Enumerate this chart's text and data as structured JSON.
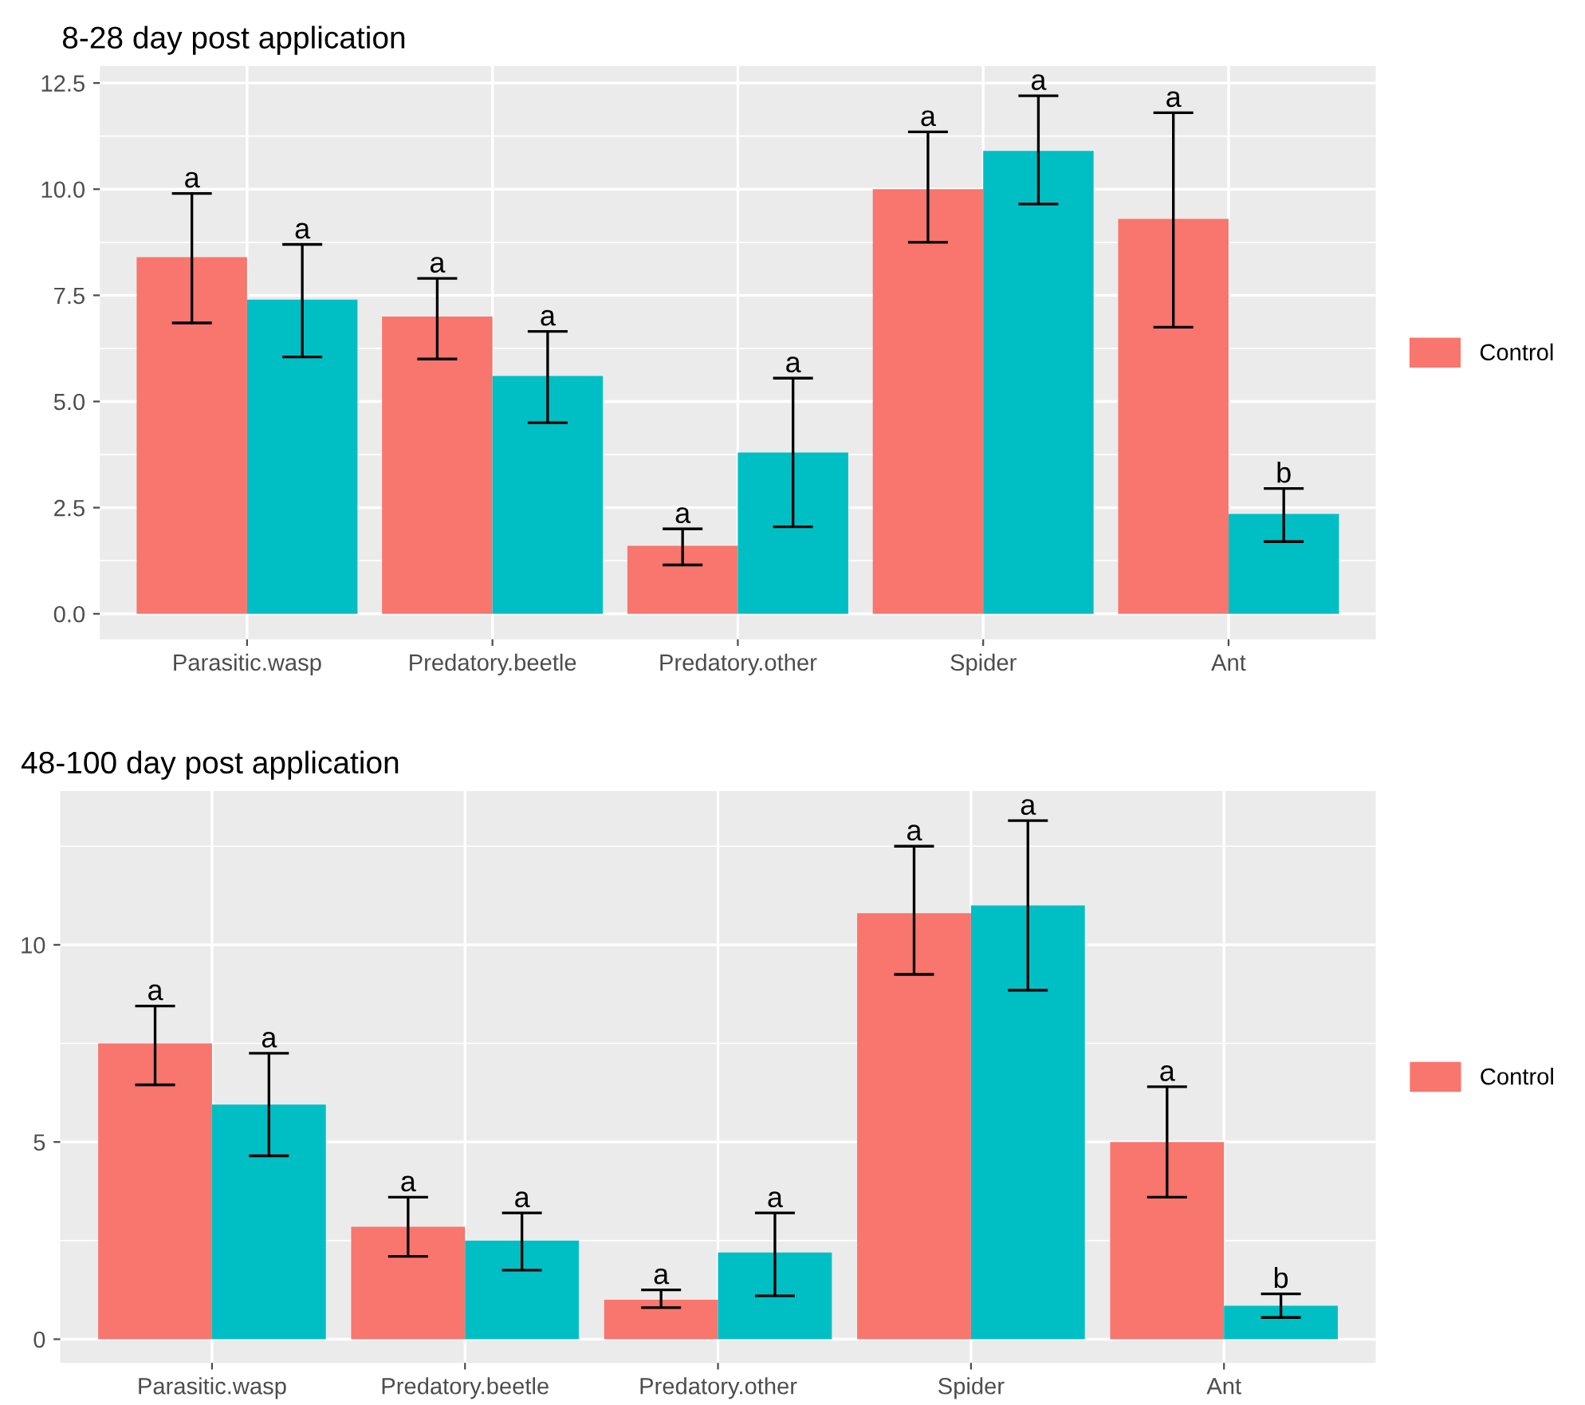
{
  "chart_data": [
    {
      "type": "bar",
      "title": "8-28 day post application",
      "categories": [
        "Parasitic.wasp",
        "Predatory.beetle",
        "Predatory.other",
        "Spider",
        "Ant"
      ],
      "series": [
        {
          "name": "Control",
          "color": "#f8766d",
          "values": [
            8.4,
            7.0,
            1.6,
            10.0,
            9.3
          ],
          "errors": [
            [
              6.85,
              9.9
            ],
            [
              6.0,
              7.9
            ],
            [
              1.15,
              2.0
            ],
            [
              8.75,
              11.35
            ],
            [
              6.75,
              11.8
            ]
          ]
        },
        {
          "color": "#00bfc4",
          "values": [
            7.4,
            5.6,
            3.8,
            10.9,
            2.35
          ],
          "errors": [
            [
              6.05,
              8.7
            ],
            [
              4.5,
              6.65
            ],
            [
              2.05,
              5.55
            ],
            [
              9.65,
              12.2
            ],
            [
              1.7,
              2.95
            ]
          ]
        }
      ],
      "annotations": [
        "a",
        "a",
        "a",
        "a",
        "a",
        "a",
        "a",
        "a",
        "a",
        "b"
      ],
      "ylim": [
        -0.6,
        12.9
      ],
      "yticks": [
        {
          "value": 0,
          "label": "0.0"
        },
        {
          "value": 2.5,
          "label": "2.5"
        },
        {
          "value": 5,
          "label": "5.0"
        },
        {
          "value": 7.5,
          "label": "7.5"
        },
        {
          "value": 10,
          "label": "10.0"
        },
        {
          "value": 12.5,
          "label": "12.5"
        }
      ],
      "grid": true,
      "legend": "right"
    },
    {
      "type": "bar",
      "title": "48-100 day post application",
      "categories": [
        "Parasitic.wasp",
        "Predatory.beetle",
        "Predatory.other",
        "Spider",
        "Ant"
      ],
      "series": [
        {
          "name": "Control",
          "color": "#f8766d",
          "values": [
            7.5,
            2.85,
            1.0,
            10.8,
            5.0
          ],
          "errors": [
            [
              6.45,
              8.45
            ],
            [
              2.1,
              3.6
            ],
            [
              0.8,
              1.25
            ],
            [
              9.25,
              12.5
            ],
            [
              3.6,
              6.4
            ]
          ]
        },
        {
          "color": "#00bfc4",
          "values": [
            5.95,
            2.5,
            2.2,
            11.0,
            0.85
          ],
          "errors": [
            [
              4.65,
              7.25
            ],
            [
              1.75,
              3.2
            ],
            [
              1.1,
              3.2
            ],
            [
              8.85,
              13.15
            ],
            [
              0.55,
              1.15
            ]
          ]
        }
      ],
      "annotations": [
        "a",
        "a",
        "a",
        "a",
        "a",
        "a",
        "a",
        "a",
        "a",
        "b"
      ],
      "ylim": [
        -0.6,
        13.9
      ],
      "yticks": [
        0,
        5,
        10
      ],
      "grid": true,
      "legend": "right"
    }
  ]
}
